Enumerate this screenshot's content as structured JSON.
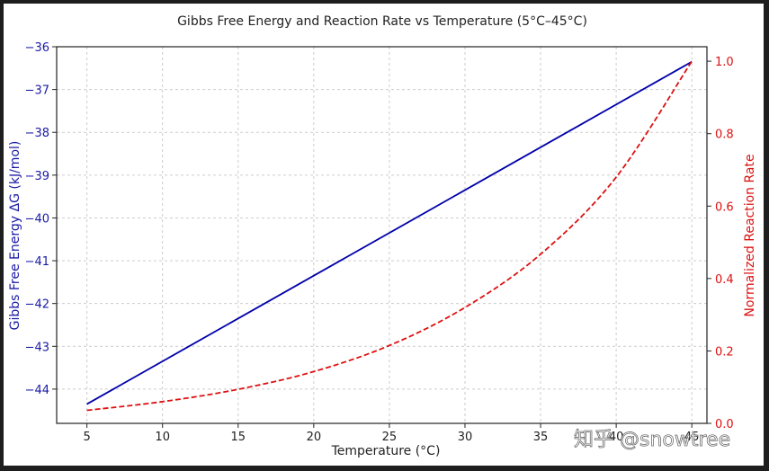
{
  "chart_data": {
    "type": "line",
    "title": "Gibbs Free Energy and Reaction Rate vs Temperature (5°C–45°C)",
    "xlabel": "Temperature (°C)",
    "ylabel_left": "Gibbs Free Energy ΔG (kJ/mol)",
    "ylabel_right": "Normalized Reaction Rate",
    "xlim": [
      3,
      46
    ],
    "ylim_left": [
      -44.8,
      -36
    ],
    "ylim_right": [
      0,
      1.04
    ],
    "x_ticks": [
      5,
      10,
      15,
      20,
      25,
      30,
      35,
      40,
      45
    ],
    "x_tick_labels": [
      "5",
      "10",
      "15",
      "20",
      "25",
      "30",
      "35",
      "40",
      "45"
    ],
    "y_left_ticks": [
      -44,
      -43,
      -42,
      -41,
      -40,
      -39,
      -38,
      -37,
      -36
    ],
    "y_left_tick_labels": [
      "−44",
      "−43",
      "−42",
      "−41",
      "−40",
      "−39",
      "−38",
      "−37",
      "−36"
    ],
    "y_right_ticks": [
      0,
      0.2,
      0.4,
      0.6,
      0.8,
      1.0
    ],
    "y_right_tick_labels": [
      "0.0",
      "0.2",
      "0.4",
      "0.6",
      "0.8",
      "1.0"
    ],
    "grid": true,
    "series": [
      {
        "axis": "left",
        "style": "solid",
        "color": "#0000aa",
        "x": [
          5,
          45
        ],
        "values": [
          -44.35,
          -36.35
        ]
      },
      {
        "axis": "right",
        "style": "dashed",
        "color": "#dd1111",
        "x": [
          5,
          10,
          15,
          20,
          25,
          30,
          35,
          40,
          45
        ],
        "values": [
          0.036,
          0.06,
          0.094,
          0.143,
          0.215,
          0.32,
          0.467,
          0.68,
          1.0
        ]
      }
    ]
  },
  "colors": {
    "left_axis": "#1a1aa6",
    "right_axis": "#dd1111",
    "grid": "#cccccc",
    "text": "#222222"
  },
  "watermark": "知乎 @snowtree"
}
